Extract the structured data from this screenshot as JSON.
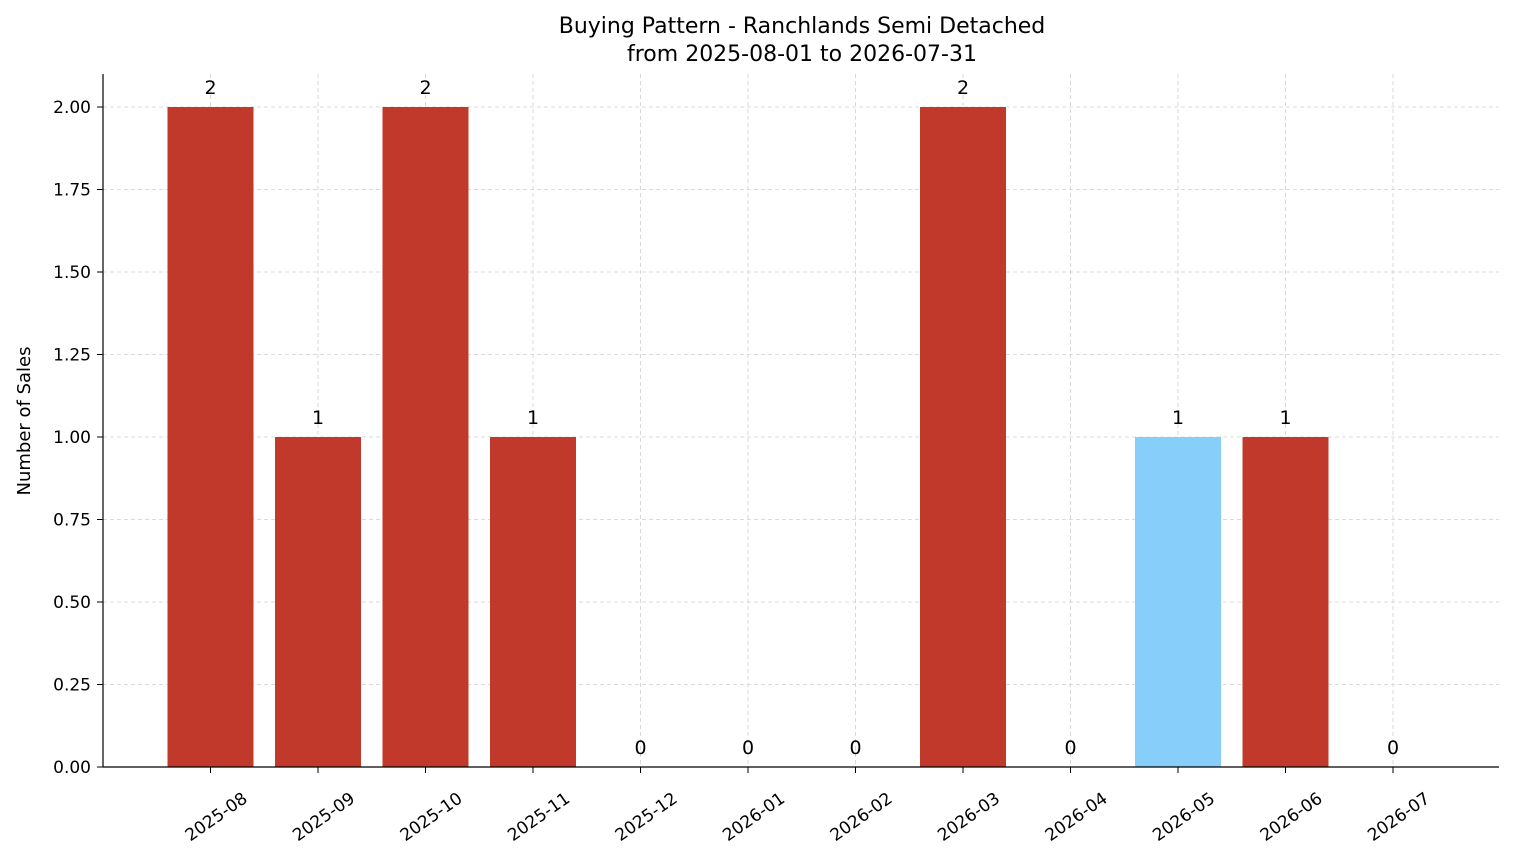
{
  "chart_data": {
    "type": "bar",
    "title_line1": "Buying Pattern - Ranchlands Semi Detached",
    "title_line2": "from 2025-08-01 to 2026-07-31",
    "xlabel": "",
    "ylabel": "Number of Sales",
    "categories": [
      "2025-08",
      "2025-09",
      "2025-10",
      "2025-11",
      "2025-12",
      "2026-01",
      "2026-02",
      "2026-03",
      "2026-04",
      "2026-05",
      "2026-06",
      "2026-07"
    ],
    "values": [
      2,
      1,
      2,
      1,
      0,
      0,
      0,
      2,
      0,
      1,
      1,
      0
    ],
    "value_labels": [
      "2",
      "1",
      "2",
      "1",
      "0",
      "0",
      "0",
      "2",
      "0",
      "1",
      "1",
      "0"
    ],
    "bar_colors": [
      "#c0392b",
      "#c0392b",
      "#c0392b",
      "#c0392b",
      "#c0392b",
      "#c0392b",
      "#c0392b",
      "#c0392b",
      "#c0392b",
      "#87cefa",
      "#c0392b",
      "#c0392b"
    ],
    "ylim": [
      0,
      2.1
    ],
    "yticks": [
      "0.00",
      "0.25",
      "0.50",
      "0.75",
      "1.00",
      "1.25",
      "1.50",
      "1.75",
      "2.00"
    ],
    "ytick_values": [
      0,
      0.25,
      0.5,
      0.75,
      1.0,
      1.25,
      1.5,
      1.75,
      2.0
    ],
    "grid": true,
    "legend": "none"
  }
}
